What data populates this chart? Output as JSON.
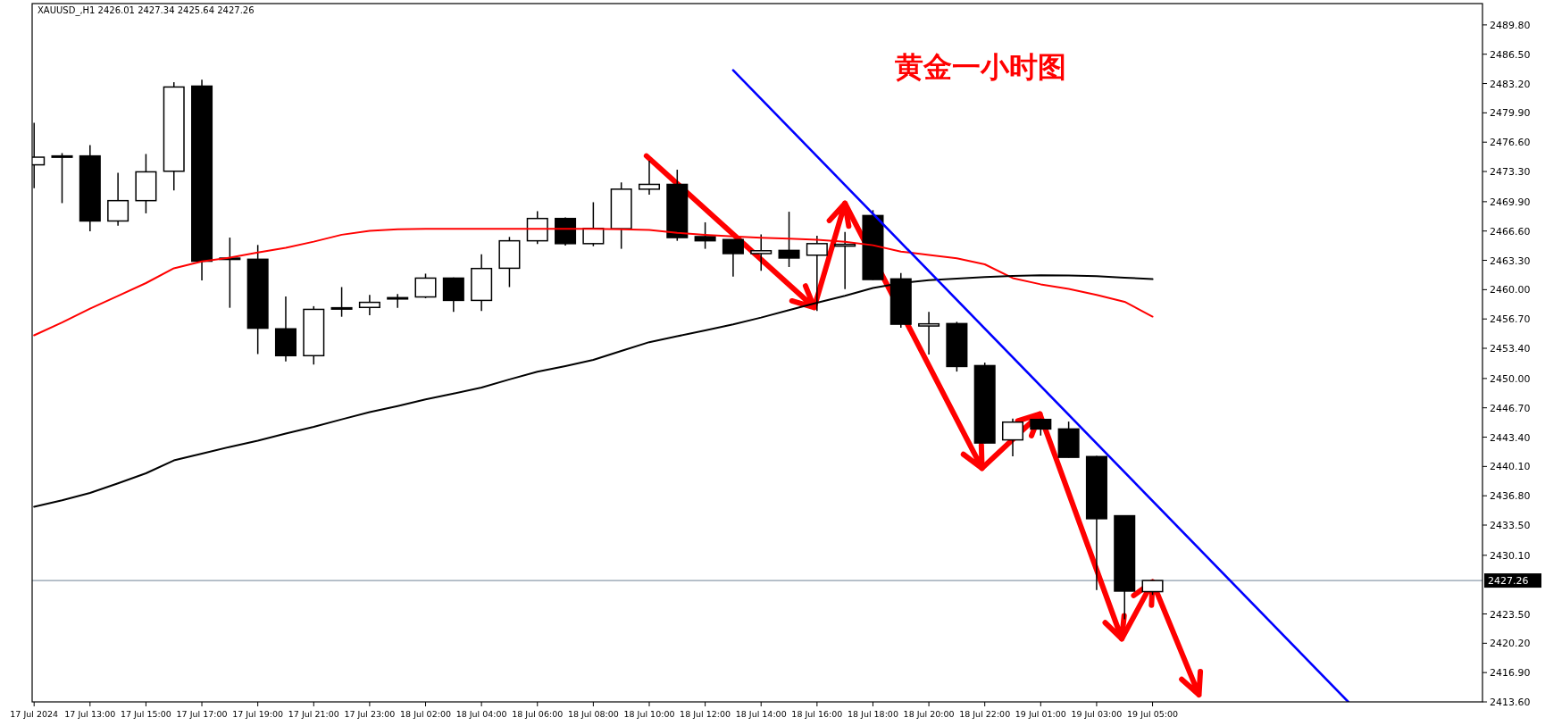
{
  "chart_data": {
    "type": "candlestick",
    "title": "黄金一小时图",
    "subtitle": "XAUUSD_,H1 2426.01 2427.34 2425.64 2427.26",
    "categories": [
      "17 Jul 2024",
      null,
      "17 Jul 13:00",
      null,
      "17 Jul 15:00",
      null,
      "17 Jul 17:00",
      null,
      "17 Jul 19:00",
      null,
      "17 Jul 21:00",
      null,
      "17 Jul 23:00",
      null,
      "18 Jul 02:00",
      null,
      "18 Jul 04:00",
      null,
      "18 Jul 06:00",
      null,
      "18 Jul 08:00",
      null,
      "18 Jul 10:00",
      null,
      "18 Jul 12:00",
      null,
      "18 Jul 14:00",
      null,
      "18 Jul 16:00",
      null,
      "18 Jul 18:00",
      null,
      "18 Jul 20:00",
      null,
      "18 Jul 22:00",
      null,
      "19 Jul 01:00",
      null,
      "19 Jul 03:00",
      null,
      "19 Jul 05:00",
      null,
      null,
      null,
      null,
      null,
      null,
      null,
      null,
      null,
      null,
      null
    ],
    "ohlc": [
      [
        2474.05,
        2478.79,
        2471.42,
        2474.91
      ],
      [
        2475.05,
        2475.37,
        2469.74,
        2474.95
      ],
      [
        2475.05,
        2476.27,
        2466.58,
        2467.73
      ],
      [
        2467.73,
        2473.15,
        2467.19,
        2470.02
      ],
      [
        2470.02,
        2475.27,
        2468.59,
        2473.26
      ],
      [
        2473.33,
        2483.35,
        2471.17,
        2482.81
      ],
      [
        2482.91,
        2483.63,
        2461.05,
        2463.2
      ],
      [
        2463.55,
        2465.86,
        2457.96,
        2463.5
      ],
      [
        2463.42,
        2465.03,
        2452.75,
        2455.66
      ],
      [
        2455.59,
        2459.22,
        2451.93,
        2452.57
      ],
      [
        2452.57,
        2458.14,
        2451.57,
        2457.78
      ],
      [
        2457.96,
        2460.29,
        2456.95,
        2457.9
      ],
      [
        2458.0,
        2459.4,
        2457.13,
        2458.57
      ],
      [
        2459.05,
        2459.5,
        2457.96,
        2459.1
      ],
      [
        2459.18,
        2461.8,
        2459.04,
        2461.3
      ],
      [
        2461.3,
        2461.37,
        2457.49,
        2458.79
      ],
      [
        2458.79,
        2463.99,
        2457.6,
        2462.38
      ],
      [
        2462.41,
        2465.93,
        2460.29,
        2465.5
      ],
      [
        2465.5,
        2468.84,
        2465.14,
        2468.01
      ],
      [
        2468.01,
        2468.12,
        2464.96,
        2465.18
      ],
      [
        2465.18,
        2469.84,
        2464.89,
        2466.9
      ],
      [
        2466.86,
        2472.07,
        2464.6,
        2471.31
      ],
      [
        2471.31,
        2474.5,
        2470.7,
        2471.85
      ],
      [
        2471.85,
        2473.5,
        2465.5,
        2465.86
      ],
      [
        2465.97,
        2467.58,
        2464.6,
        2465.5
      ],
      [
        2465.64,
        2465.64,
        2461.48,
        2464.06
      ],
      [
        2464.06,
        2466.22,
        2462.12,
        2464.38
      ],
      [
        2464.42,
        2468.77,
        2462.55,
        2463.56
      ],
      [
        2463.88,
        2466.07,
        2457.6,
        2465.18
      ],
      [
        2464.9,
        2466.5,
        2460.07,
        2465.1
      ],
      [
        2468.34,
        2468.95,
        2461.1,
        2461.14
      ],
      [
        2461.21,
        2461.88,
        2455.71,
        2456.11
      ],
      [
        2455.91,
        2457.49,
        2452.7,
        2456.15
      ],
      [
        2456.18,
        2456.38,
        2450.78,
        2451.35
      ],
      [
        2451.45,
        2451.79,
        2442.7,
        2442.74
      ],
      [
        2443.09,
        2445.49,
        2441.23,
        2445.09
      ],
      [
        2445.39,
        2445.49,
        2443.58,
        2444.32
      ],
      [
        2444.32,
        2445.15,
        2441.1,
        2441.13
      ],
      [
        2441.21,
        2441.3,
        2426.18,
        2434.22
      ],
      [
        2434.55,
        2434.6,
        2422.9,
        2426.07
      ],
      [
        2426.01,
        2427.34,
        2425.64,
        2427.26
      ],
      null,
      null,
      null,
      null,
      null,
      null,
      null,
      null,
      null,
      null,
      null
    ],
    "series": [
      {
        "type": "line",
        "color": "#ff0000",
        "values": [
          2454.86,
          2456.3,
          2457.86,
          2459.3,
          2460.74,
          2462.4,
          2463.18,
          2463.6,
          2464.18,
          2464.7,
          2465.4,
          2466.18,
          2466.62,
          2466.8,
          2466.84,
          2466.84,
          2466.84,
          2466.84,
          2466.84,
          2466.84,
          2466.84,
          2466.8,
          2466.73,
          2466.4,
          2466.18,
          2466.0,
          2465.84,
          2465.73,
          2465.62,
          2465.4,
          2465.0,
          2464.29,
          2463.9,
          2463.52,
          2462.85,
          2461.3,
          2460.6,
          2460.08,
          2459.41,
          2458.63,
          2456.97,
          null,
          null,
          null,
          null,
          null,
          null,
          null,
          null,
          null,
          null,
          null
        ]
      },
      {
        "type": "line",
        "color": "#000000",
        "values": [
          2435.56,
          2436.3,
          2437.12,
          2438.2,
          2439.33,
          2440.78,
          2441.55,
          2442.3,
          2443.0,
          2443.8,
          2444.55,
          2445.4,
          2446.21,
          2446.9,
          2447.65,
          2448.3,
          2448.98,
          2449.9,
          2450.76,
          2451.4,
          2452.09,
          2453.1,
          2454.09,
          2454.75,
          2455.42,
          2456.1,
          2456.86,
          2457.7,
          2458.52,
          2459.3,
          2460.19,
          2460.74,
          2461.07,
          2461.25,
          2461.41,
          2461.55,
          2461.63,
          2461.6,
          2461.52,
          2461.35,
          2461.18,
          null,
          null,
          null,
          null,
          null,
          null,
          null,
          null,
          null,
          null,
          null
        ]
      },
      {
        "type": "line",
        "color": "#0000ff",
        "values": [
          null,
          null,
          null,
          null,
          null,
          null,
          null,
          null,
          null,
          null,
          null,
          null,
          null,
          null,
          null,
          null,
          null,
          null,
          null,
          null,
          null,
          null,
          null,
          null,
          null,
          2484.7,
          null,
          null,
          null,
          null,
          null,
          null,
          null,
          null,
          null,
          null,
          null,
          null,
          null,
          null,
          null,
          null,
          null,
          null,
          null,
          null,
          null,
          2413.6,
          null,
          null,
          null,
          null
        ]
      }
    ],
    "ylim": [
      2413.6,
      2492.2
    ],
    "yticks": [
      {
        "value": 2489.8,
        "label": "2489.80"
      },
      {
        "value": 2486.5,
        "label": "2486.50"
      },
      {
        "value": 2483.2,
        "label": "2483.20"
      },
      {
        "value": 2479.9,
        "label": "2479.90"
      },
      {
        "value": 2476.6,
        "label": "2476.60"
      },
      {
        "value": 2473.3,
        "label": "2473.30"
      },
      {
        "value": 2469.9,
        "label": "2469.90"
      },
      {
        "value": 2466.6,
        "label": "2466.60"
      },
      {
        "value": 2463.3,
        "label": "2463.30"
      },
      {
        "value": 2460,
        "label": "2460.00"
      },
      {
        "value": 2456.7,
        "label": "2456.70"
      },
      {
        "value": 2453.4,
        "label": "2453.40"
      },
      {
        "value": 2450,
        "label": "2450.00"
      },
      {
        "value": 2446.7,
        "label": "2446.70"
      },
      {
        "value": 2443.4,
        "label": "2443.40"
      },
      {
        "value": 2440.1,
        "label": "2440.10"
      },
      {
        "value": 2436.8,
        "label": "2436.80"
      },
      {
        "value": 2433.5,
        "label": "2433.50"
      },
      {
        "value": 2430.1,
        "label": "2430.10"
      },
      {
        "value": 2423.5,
        "label": "2423.50"
      },
      {
        "value": 2420.2,
        "label": "2420.20"
      },
      {
        "value": 2416.9,
        "label": "2416.90"
      },
      {
        "value": 2413.6,
        "label": "2413.60"
      }
    ],
    "ref_lines": [
      {
        "axis": "y",
        "value": 2427.26,
        "label": "2427.26",
        "color": "#8c9bab"
      }
    ]
  }
}
